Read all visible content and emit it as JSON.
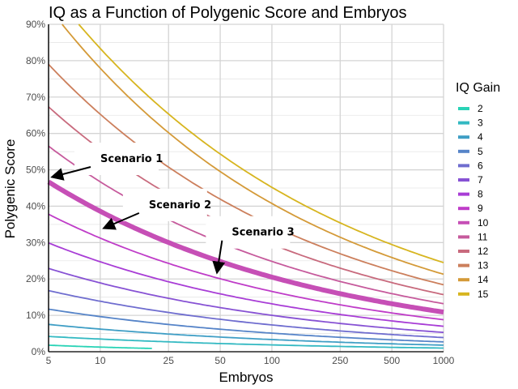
{
  "chart_data": {
    "type": "line",
    "title": "IQ as a Function of Polygenic Score and Embryos",
    "xlabel": "Embryos",
    "ylabel": "Polygenic Score",
    "x_scale": "log",
    "xlim": [
      5,
      1000
    ],
    "ylim": [
      0,
      90
    ],
    "x_ticks": [
      "5",
      "10",
      "25",
      "50",
      "100",
      "250",
      "500",
      "1000"
    ],
    "y_ticks": [
      "0%",
      "10%",
      "20%",
      "30%",
      "40%",
      "50%",
      "60%",
      "70%",
      "80%",
      "90%"
    ],
    "grid": true,
    "legend": {
      "title": "IQ Gain",
      "placement": "right"
    },
    "highlight_series": "10",
    "series": [
      {
        "name": "2",
        "color": "#29d3b6",
        "x": [
          5,
          20
        ],
        "y": [
          1.8,
          0.9
        ]
      },
      {
        "name": "3",
        "color": "#33b9c2",
        "x": [
          5,
          1000
        ],
        "y": [
          4.2,
          1.0
        ]
      },
      {
        "name": "4",
        "color": "#3f9ec5",
        "x": [
          5,
          1000
        ],
        "y": [
          7.5,
          1.8
        ]
      },
      {
        "name": "5",
        "color": "#5684c8",
        "x": [
          5,
          1000
        ],
        "y": [
          11.7,
          2.7
        ]
      },
      {
        "name": "6",
        "color": "#6f6dcf",
        "x": [
          5,
          1000
        ],
        "y": [
          16.8,
          3.9
        ]
      },
      {
        "name": "7",
        "color": "#8752d4",
        "x": [
          5,
          1000
        ],
        "y": [
          22.9,
          5.3
        ]
      },
      {
        "name": "8",
        "color": "#a83dd6",
        "x": [
          5,
          1000
        ],
        "y": [
          29.9,
          7.0
        ]
      },
      {
        "name": "9",
        "color": "#bf3cc8",
        "x": [
          5,
          1000
        ],
        "y": [
          37.8,
          8.8
        ]
      },
      {
        "name": "10",
        "color": "#c64fb6",
        "x": [
          5,
          1000
        ],
        "y": [
          46.7,
          10.9
        ]
      },
      {
        "name": "11",
        "color": "#c65a9c",
        "x": [
          5,
          1000
        ],
        "y": [
          56.5,
          13.2
        ]
      },
      {
        "name": "12",
        "color": "#c86a7d",
        "x": [
          5,
          1000
        ],
        "y": [
          67.3,
          15.7
        ]
      },
      {
        "name": "13",
        "color": "#cc7f5c",
        "x": [
          5,
          1000
        ],
        "y": [
          79.0,
          18.4
        ]
      },
      {
        "name": "14",
        "color": "#d49a38",
        "x": [
          6,
          1000
        ],
        "y": [
          90.0,
          21.3
        ]
      },
      {
        "name": "15",
        "color": "#d7b51f",
        "x": [
          7.5,
          1000
        ],
        "y": [
          90.0,
          24.5
        ]
      }
    ],
    "annotations": [
      {
        "text": "Scenario 1",
        "x": 5,
        "y": 47
      },
      {
        "text": "Scenario 2",
        "x": 10,
        "y": 33
      },
      {
        "text": "Scenario 3",
        "x": 45,
        "y": 21
      }
    ]
  }
}
